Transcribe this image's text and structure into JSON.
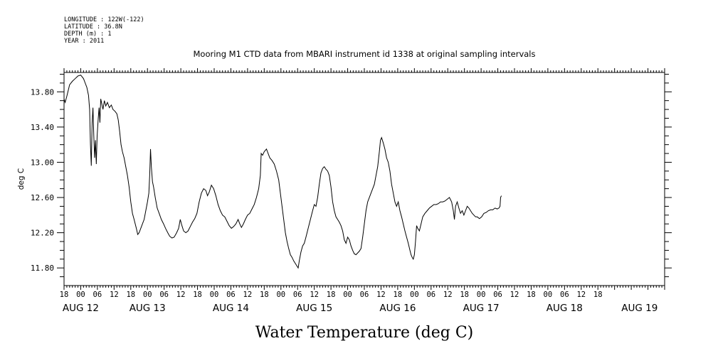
{
  "meta": {
    "longitude": "LONGITUDE : 122W(-122)",
    "latitude": "LATITUDE : 36.8N",
    "depth": "DEPTH (m) : 1",
    "year": "YEAR : 2011"
  },
  "chart_data": {
    "type": "line",
    "title": "Mooring M1 CTD data from MBARI instrument id 1338 at original sampling intervals",
    "xlabel": "Water Temperature (deg C)",
    "ylabel": "deg C",
    "xlim": [
      -6,
      210
    ],
    "ylim": [
      11.6,
      14.02
    ],
    "x_units": "hours since 2011-08-12 00:00",
    "yticks": [
      "11.80",
      "12.20",
      "12.60",
      "13.00",
      "13.40",
      "13.80"
    ],
    "hour_labels": [
      "18",
      "00",
      "06",
      "12",
      "18",
      "00",
      "06",
      "12",
      "18",
      "00",
      "06",
      "12",
      "18",
      "00",
      "06",
      "12",
      "18",
      "00",
      "06",
      "12",
      "18",
      "00",
      "06",
      "12",
      "18",
      "00",
      "06",
      "12",
      "18",
      "00",
      "06",
      "12",
      "18"
    ],
    "day_labels": [
      {
        "label": "AUG 12",
        "hour": 0
      },
      {
        "label": "AUG 13",
        "hour": 24
      },
      {
        "label": "AUG 14",
        "hour": 54
      },
      {
        "label": "AUG 15",
        "hour": 84
      },
      {
        "label": "AUG 16",
        "hour": 114
      },
      {
        "label": "AUG 17",
        "hour": 144
      },
      {
        "label": "AUG 18",
        "hour": 174
      },
      {
        "label": "AUG 19",
        "hour": 201
      }
    ],
    "grid": false,
    "series": [
      {
        "color": "#000000",
        "points": [
          [
            -6,
            13.72
          ],
          [
            -5.6,
            13.68
          ],
          [
            -5,
            13.75
          ],
          [
            -4,
            13.88
          ],
          [
            -3,
            13.92
          ],
          [
            -2,
            13.95
          ],
          [
            -1,
            13.98
          ],
          [
            0,
            13.99
          ],
          [
            1,
            13.95
          ],
          [
            1.6,
            13.9
          ],
          [
            2.2,
            13.85
          ],
          [
            2.8,
            13.76
          ],
          [
            3.2,
            13.6
          ],
          [
            3.5,
            13.2
          ],
          [
            3.8,
            12.96
          ],
          [
            4.1,
            13.45
          ],
          [
            4.4,
            13.62
          ],
          [
            4.7,
            13.3
          ],
          [
            5,
            13.05
          ],
          [
            5.3,
            13.25
          ],
          [
            5.6,
            12.98
          ],
          [
            5.9,
            13.3
          ],
          [
            6.3,
            13.5
          ],
          [
            6.6,
            13.62
          ],
          [
            6.9,
            13.45
          ],
          [
            7.2,
            13.72
          ],
          [
            7.6,
            13.66
          ],
          [
            8,
            13.6
          ],
          [
            8.5,
            13.7
          ],
          [
            9,
            13.64
          ],
          [
            9.6,
            13.68
          ],
          [
            10.3,
            13.62
          ],
          [
            11,
            13.65
          ],
          [
            11.6,
            13.6
          ],
          [
            12.3,
            13.58
          ],
          [
            13,
            13.55
          ],
          [
            13.5,
            13.48
          ],
          [
            14,
            13.35
          ],
          [
            14.5,
            13.2
          ],
          [
            15,
            13.12
          ],
          [
            15.6,
            13.05
          ],
          [
            16.2,
            12.95
          ],
          [
            16.8,
            12.85
          ],
          [
            17.4,
            12.72
          ],
          [
            18,
            12.55
          ],
          [
            18.6,
            12.42
          ],
          [
            19.2,
            12.35
          ],
          [
            19.6,
            12.3
          ],
          [
            20,
            12.25
          ],
          [
            20.5,
            12.18
          ],
          [
            21,
            12.2
          ],
          [
            21.6,
            12.25
          ],
          [
            22.2,
            12.3
          ],
          [
            22.8,
            12.35
          ],
          [
            23.4,
            12.45
          ],
          [
            24,
            12.55
          ],
          [
            24.5,
            12.65
          ],
          [
            24.8,
            12.85
          ],
          [
            25.1,
            13.15
          ],
          [
            25.4,
            12.95
          ],
          [
            25.8,
            12.78
          ],
          [
            26.2,
            12.72
          ],
          [
            26.8,
            12.6
          ],
          [
            27.5,
            12.48
          ],
          [
            28.2,
            12.42
          ],
          [
            29,
            12.35
          ],
          [
            29.8,
            12.3
          ],
          [
            30.5,
            12.25
          ],
          [
            31.3,
            12.2
          ],
          [
            32,
            12.16
          ],
          [
            32.8,
            12.14
          ],
          [
            33.6,
            12.15
          ],
          [
            34.5,
            12.2
          ],
          [
            35.2,
            12.25
          ],
          [
            35.8,
            12.35
          ],
          [
            36.4,
            12.28
          ],
          [
            37,
            12.22
          ],
          [
            37.8,
            12.2
          ],
          [
            38.6,
            12.22
          ],
          [
            39.4,
            12.27
          ],
          [
            40.2,
            12.32
          ],
          [
            41,
            12.36
          ],
          [
            41.8,
            12.42
          ],
          [
            42.6,
            12.55
          ],
          [
            43.4,
            12.65
          ],
          [
            44.2,
            12.7
          ],
          [
            45,
            12.68
          ],
          [
            45.6,
            12.62
          ],
          [
            46.2,
            12.66
          ],
          [
            47,
            12.74
          ],
          [
            47.8,
            12.7
          ],
          [
            48.6,
            12.62
          ],
          [
            49.4,
            12.52
          ],
          [
            50.2,
            12.45
          ],
          [
            51,
            12.4
          ],
          [
            51.8,
            12.38
          ],
          [
            52.6,
            12.33
          ],
          [
            53.4,
            12.28
          ],
          [
            54.2,
            12.25
          ],
          [
            55,
            12.27
          ],
          [
            55.8,
            12.3
          ],
          [
            56.6,
            12.35
          ],
          [
            57.2,
            12.3
          ],
          [
            57.8,
            12.26
          ],
          [
            58.5,
            12.3
          ],
          [
            59.2,
            12.35
          ],
          [
            60,
            12.4
          ],
          [
            60.8,
            12.42
          ],
          [
            61.6,
            12.47
          ],
          [
            62.4,
            12.52
          ],
          [
            63.2,
            12.6
          ],
          [
            64,
            12.7
          ],
          [
            64.6,
            12.85
          ],
          [
            64.9,
            13.1
          ],
          [
            65.4,
            13.08
          ],
          [
            66,
            13.12
          ],
          [
            66.8,
            13.15
          ],
          [
            67.4,
            13.1
          ],
          [
            68,
            13.05
          ],
          [
            68.8,
            13.02
          ],
          [
            69.6,
            12.98
          ],
          [
            70.4,
            12.9
          ],
          [
            71.2,
            12.8
          ],
          [
            71.8,
            12.65
          ],
          [
            72.4,
            12.5
          ],
          [
            73,
            12.35
          ],
          [
            73.6,
            12.2
          ],
          [
            74.2,
            12.1
          ],
          [
            74.8,
            12.02
          ],
          [
            75.4,
            11.95
          ],
          [
            76,
            11.92
          ],
          [
            76.6,
            11.88
          ],
          [
            77.2,
            11.85
          ],
          [
            77.8,
            11.82
          ],
          [
            78.2,
            11.8
          ],
          [
            78.6,
            11.88
          ],
          [
            79.2,
            11.98
          ],
          [
            79.8,
            12.05
          ],
          [
            80.4,
            12.08
          ],
          [
            81,
            12.15
          ],
          [
            81.8,
            12.25
          ],
          [
            82.6,
            12.35
          ],
          [
            83.4,
            12.45
          ],
          [
            84,
            12.52
          ],
          [
            84.6,
            12.5
          ],
          [
            85.2,
            12.6
          ],
          [
            85.8,
            12.75
          ],
          [
            86.4,
            12.88
          ],
          [
            87,
            12.93
          ],
          [
            87.6,
            12.95
          ],
          [
            88.2,
            12.92
          ],
          [
            88.8,
            12.9
          ],
          [
            89.4,
            12.85
          ],
          [
            90,
            12.72
          ],
          [
            90.6,
            12.55
          ],
          [
            91.2,
            12.45
          ],
          [
            91.8,
            12.38
          ],
          [
            92.4,
            12.35
          ],
          [
            93,
            12.32
          ],
          [
            93.6,
            12.28
          ],
          [
            94.2,
            12.22
          ],
          [
            94.8,
            12.12
          ],
          [
            95.4,
            12.08
          ],
          [
            96,
            12.15
          ],
          [
            96.6,
            12.12
          ],
          [
            97.2,
            12.05
          ],
          [
            97.8,
            12.0
          ],
          [
            98.4,
            11.96
          ],
          [
            99,
            11.95
          ],
          [
            99.6,
            11.97
          ],
          [
            100.2,
            11.99
          ],
          [
            100.8,
            12.02
          ],
          [
            101.4,
            12.15
          ],
          [
            102,
            12.3
          ],
          [
            102.6,
            12.45
          ],
          [
            103.2,
            12.55
          ],
          [
            103.8,
            12.6
          ],
          [
            104.4,
            12.65
          ],
          [
            105,
            12.7
          ],
          [
            105.6,
            12.75
          ],
          [
            106.2,
            12.85
          ],
          [
            106.8,
            12.95
          ],
          [
            107.4,
            13.12
          ],
          [
            107.8,
            13.25
          ],
          [
            108.2,
            13.28
          ],
          [
            108.8,
            13.22
          ],
          [
            109.4,
            13.15
          ],
          [
            110,
            13.05
          ],
          [
            110.6,
            13.0
          ],
          [
            111.2,
            12.9
          ],
          [
            111.8,
            12.75
          ],
          [
            112.4,
            12.65
          ],
          [
            113,
            12.55
          ],
          [
            113.6,
            12.5
          ],
          [
            114.2,
            12.55
          ],
          [
            114.8,
            12.45
          ],
          [
            115.4,
            12.38
          ],
          [
            116,
            12.3
          ],
          [
            116.6,
            12.22
          ],
          [
            117.2,
            12.15
          ],
          [
            117.8,
            12.08
          ],
          [
            118.4,
            12.0
          ],
          [
            118.8,
            11.95
          ],
          [
            119.2,
            11.92
          ],
          [
            119.6,
            11.9
          ],
          [
            120,
            11.95
          ],
          [
            120.4,
            12.1
          ],
          [
            120.8,
            12.28
          ],
          [
            121.2,
            12.25
          ],
          [
            121.8,
            12.22
          ],
          [
            122.4,
            12.3
          ],
          [
            123,
            12.38
          ],
          [
            123.8,
            12.42
          ],
          [
            124.6,
            12.45
          ],
          [
            125.4,
            12.48
          ],
          [
            126.2,
            12.5
          ],
          [
            127,
            12.52
          ],
          [
            127.8,
            12.52
          ],
          [
            128.6,
            12.53
          ],
          [
            129.4,
            12.55
          ],
          [
            130.2,
            12.55
          ],
          [
            131,
            12.56
          ],
          [
            131.8,
            12.58
          ],
          [
            132.6,
            12.6
          ],
          [
            133.4,
            12.55
          ],
          [
            134,
            12.45
          ],
          [
            134.4,
            12.35
          ],
          [
            134.8,
            12.5
          ],
          [
            135.4,
            12.55
          ],
          [
            136,
            12.48
          ],
          [
            136.6,
            12.42
          ],
          [
            137.2,
            12.45
          ],
          [
            137.8,
            12.4
          ],
          [
            138.4,
            12.45
          ],
          [
            139,
            12.5
          ],
          [
            139.6,
            12.48
          ],
          [
            140.2,
            12.45
          ],
          [
            140.8,
            12.42
          ],
          [
            141.4,
            12.4
          ],
          [
            142,
            12.38
          ],
          [
            142.6,
            12.38
          ],
          [
            143.4,
            12.36
          ],
          [
            144.2,
            12.38
          ],
          [
            145,
            12.42
          ],
          [
            145.8,
            12.43
          ],
          [
            146.6,
            12.45
          ],
          [
            147.4,
            12.46
          ],
          [
            148.2,
            12.46
          ],
          [
            149,
            12.48
          ],
          [
            149.8,
            12.47
          ],
          [
            150.4,
            12.48
          ],
          [
            150.8,
            12.5
          ],
          [
            151,
            12.6
          ],
          [
            151.3,
            12.62
          ]
        ]
      }
    ]
  }
}
